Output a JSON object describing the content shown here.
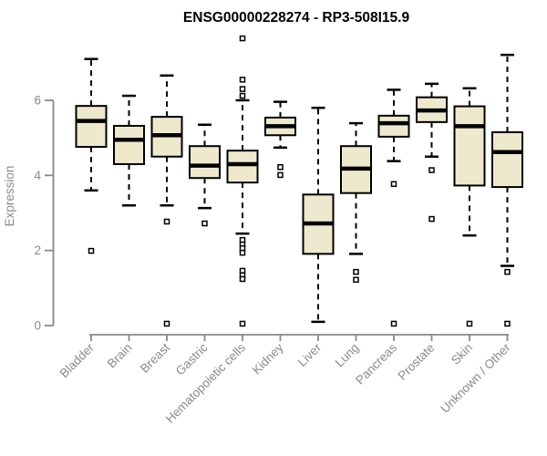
{
  "chart_data": {
    "type": "boxplot",
    "title": "ENSG00000228274 - RP3-508I15.9",
    "xlabel": "",
    "ylabel": "Expression",
    "yticks": [
      0,
      2,
      4,
      6
    ],
    "ylim": [
      0,
      7.8
    ],
    "grid": false,
    "legend": "none",
    "categories": [
      "Bladder",
      "Brain",
      "Breast",
      "Gastric",
      "Hematopoietic cells",
      "Kidney",
      "Liver",
      "Lung",
      "Pancreas",
      "Prostate",
      "Skin",
      "Unknown / Other"
    ],
    "series": [
      {
        "category": "Bladder",
        "whisker_low": 3.6,
        "q1": 4.76,
        "median": 5.45,
        "q3": 5.85,
        "whisker_high": 7.1,
        "outliers": [
          1.99
        ]
      },
      {
        "category": "Brain",
        "whisker_low": 3.2,
        "q1": 4.3,
        "median": 4.95,
        "q3": 5.32,
        "whisker_high": 6.12,
        "outliers": []
      },
      {
        "category": "Breast",
        "whisker_low": 3.2,
        "q1": 4.5,
        "median": 5.07,
        "q3": 5.56,
        "whisker_high": 6.66,
        "outliers": [
          2.77,
          0.05
        ]
      },
      {
        "category": "Gastric",
        "whisker_low": 3.13,
        "q1": 3.93,
        "median": 4.26,
        "q3": 4.78,
        "whisker_high": 5.35,
        "outliers": [
          2.72
        ]
      },
      {
        "category": "Hematopoietic cells",
        "whisker_low": 2.45,
        "q1": 3.81,
        "median": 4.3,
        "q3": 4.66,
        "whisker_high": 6.0,
        "outliers": [
          7.65,
          6.55,
          6.3,
          6.12,
          2.28,
          2.16,
          2.06,
          1.94,
          1.46,
          1.34,
          1.24,
          0.05
        ]
      },
      {
        "category": "Kidney",
        "whisker_low": 4.74,
        "q1": 5.07,
        "median": 5.31,
        "q3": 5.54,
        "whisker_high": 5.96,
        "outliers": [
          4.22,
          4.01
        ]
      },
      {
        "category": "Liver",
        "whisker_low": 0.1,
        "q1": 1.91,
        "median": 2.72,
        "q3": 3.49,
        "whisker_high": 5.8,
        "outliers": []
      },
      {
        "category": "Lung",
        "whisker_low": 1.91,
        "q1": 3.53,
        "median": 4.18,
        "q3": 4.78,
        "whisker_high": 5.39,
        "outliers": [
          1.43,
          1.22
        ]
      },
      {
        "category": "Pancreas",
        "whisker_low": 4.38,
        "q1": 5.03,
        "median": 5.39,
        "q3": 5.59,
        "whisker_high": 6.28,
        "outliers": [
          3.77,
          0.05
        ]
      },
      {
        "category": "Prostate",
        "whisker_low": 4.5,
        "q1": 5.42,
        "median": 5.73,
        "q3": 6.08,
        "whisker_high": 6.44,
        "outliers": [
          4.14,
          2.84
        ]
      },
      {
        "category": "Skin",
        "whisker_low": 2.4,
        "q1": 3.73,
        "median": 5.31,
        "q3": 5.84,
        "whisker_high": 6.32,
        "outliers": [
          0.05
        ]
      },
      {
        "category": "Unknown / Other",
        "whisker_low": 1.59,
        "q1": 3.69,
        "median": 4.62,
        "q3": 5.15,
        "whisker_high": 7.21,
        "outliers": [
          1.43,
          0.05
        ]
      }
    ],
    "colors": {
      "box_fill": "#EEE8CD",
      "box_stroke": "#000000",
      "median": "#000000",
      "whisker": "#000000",
      "outlier_stroke": "#000000",
      "outlier_fill": "#FFFFFF",
      "axis": "#888888",
      "tick_label": "#8A8A8A",
      "title": "#000000",
      "background": "#FFFFFF"
    }
  }
}
